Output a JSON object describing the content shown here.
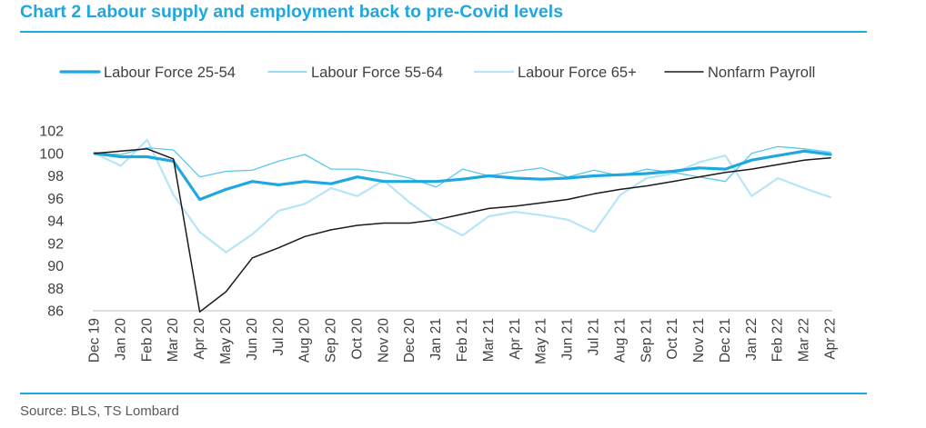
{
  "title": "Chart 2 Labour supply and employment back to pre-Covid levels",
  "source": "Source: BLS, TS Lombard",
  "colors": {
    "title": "#1fa8e0",
    "lf_25_54": "#1fa8e0",
    "lf_55_64": "#5cc8ee",
    "lf_65_plus": "#b6e5f8",
    "nonfarm": "#1a1a1a"
  },
  "chart_data": {
    "type": "line",
    "title": "Chart 2 Labour supply and employment back to pre-Covid levels",
    "xlabel": "",
    "ylabel": "",
    "ylim": [
      86,
      102
    ],
    "yticks": [
      86,
      88,
      90,
      92,
      94,
      96,
      98,
      100,
      102
    ],
    "grid": false,
    "legend_position": "top",
    "categories": [
      "Dec 19",
      "Jan 20",
      "Feb 20",
      "Mar 20",
      "Apr 20",
      "May 20",
      "Jun 20",
      "Jul 20",
      "Aug 20",
      "Sep 20",
      "Oct 20",
      "Nov 20",
      "Dec 20",
      "Jan 21",
      "Feb 21",
      "Mar 21",
      "Apr 21",
      "May 21",
      "Jun 21",
      "Jul 21",
      "Aug 21",
      "Sep 21",
      "Oct 21",
      "Nov 21",
      "Dec 21",
      "Jan 22",
      "Feb 22",
      "Mar 22",
      "Apr 22"
    ],
    "series": [
      {
        "name": "Labour Force 25-54",
        "color": "#1fa8e0",
        "width": 3.2,
        "values": [
          100,
          99.7,
          99.7,
          99.3,
          95.9,
          96.8,
          97.5,
          97.2,
          97.5,
          97.3,
          97.9,
          97.5,
          97.5,
          97.5,
          97.7,
          98.0,
          97.8,
          97.7,
          97.8,
          98.0,
          98.1,
          98.2,
          98.4,
          98.7,
          98.6,
          99.4,
          99.8,
          100.2,
          99.9
        ]
      },
      {
        "name": "Labour Force 55-64",
        "color": "#5cc8ee",
        "width": 1.3,
        "values": [
          100,
          99.9,
          100.5,
          100.3,
          97.9,
          98.4,
          98.5,
          99.3,
          99.9,
          98.6,
          98.6,
          98.3,
          97.8,
          97.0,
          98.6,
          98.0,
          98.4,
          98.7,
          97.9,
          98.5,
          98.0,
          98.6,
          98.3,
          97.9,
          97.5,
          100.0,
          100.6,
          100.4,
          100.1
        ]
      },
      {
        "name": "Labour Force 65+",
        "color": "#b6e5f8",
        "width": 2.2,
        "values": [
          100,
          98.9,
          101.2,
          96.3,
          93.0,
          91.2,
          92.8,
          94.9,
          95.5,
          96.9,
          96.2,
          97.6,
          95.6,
          93.9,
          92.7,
          94.4,
          94.8,
          94.5,
          94.1,
          93.0,
          96.3,
          97.8,
          98.2,
          99.2,
          99.8,
          96.2,
          97.8,
          96.9,
          96.1
        ]
      },
      {
        "name": "Nonfarm Payroll",
        "color": "#1a1a1a",
        "width": 1.5,
        "values": [
          100,
          100.2,
          100.4,
          99.5,
          85.9,
          87.7,
          90.7,
          91.6,
          92.6,
          93.2,
          93.6,
          93.8,
          93.8,
          94.1,
          94.6,
          95.1,
          95.3,
          95.6,
          95.9,
          96.4,
          96.8,
          97.1,
          97.5,
          97.9,
          98.3,
          98.6,
          99.0,
          99.4,
          99.6
        ]
      }
    ]
  }
}
